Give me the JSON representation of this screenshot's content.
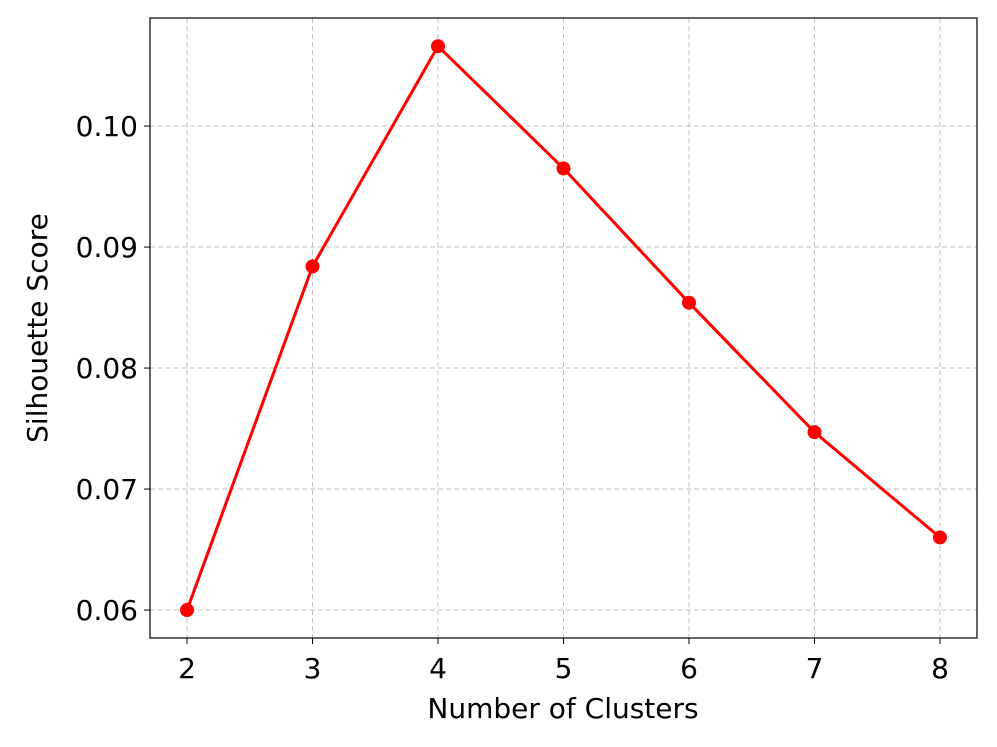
{
  "chart_data": {
    "type": "line",
    "xlabel": "Number of Clusters",
    "ylabel": "Silhouette Score",
    "x": [
      2,
      3,
      4,
      5,
      6,
      7,
      8
    ],
    "values": [
      0.06,
      0.0884,
      0.1066,
      0.0965,
      0.0854,
      0.0747,
      0.066
    ],
    "color": "#ff0000",
    "xlim": [
      1.705,
      8.295
    ],
    "xticks": [
      2,
      3,
      4,
      5,
      6,
      7,
      8
    ],
    "ylim": [
      0.05769,
      0.10893
    ],
    "yticks": [
      0.06,
      0.07,
      0.08,
      0.09,
      {
        "value": 0.1,
        "label": "0.10"
      }
    ],
    "grid": true
  }
}
